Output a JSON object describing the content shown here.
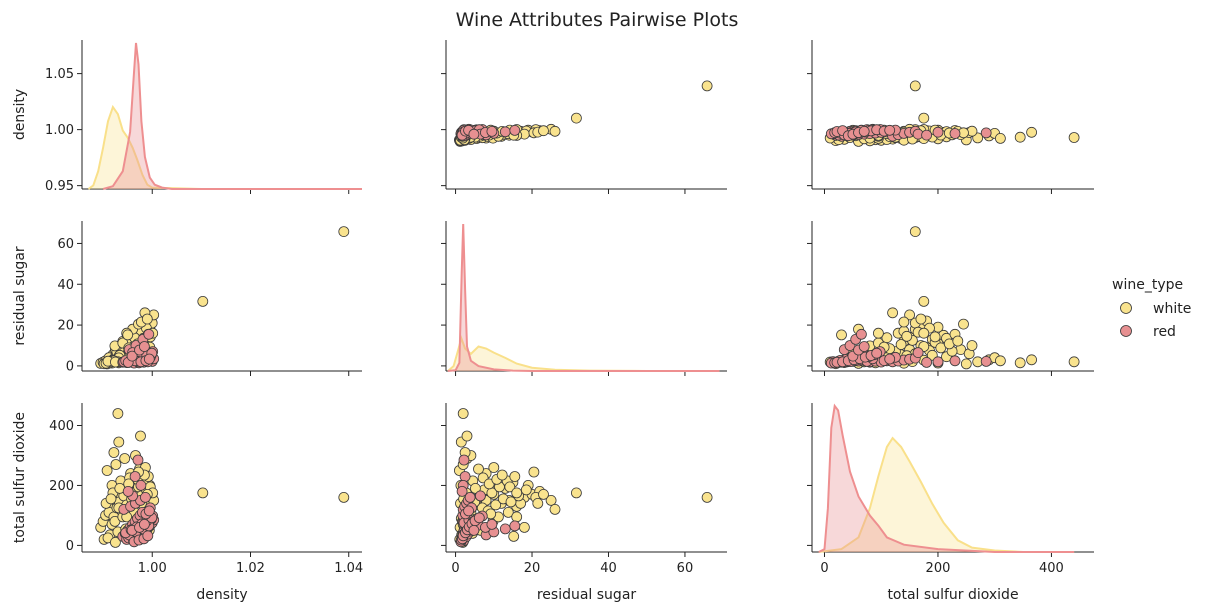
{
  "chart_data": {
    "type": "scatter",
    "title": "Wine Attributes Pairwise Plots",
    "variables": [
      "density",
      "residual sugar",
      "total sulfur dioxide"
    ],
    "axes": {
      "density": {
        "label": "density",
        "range": [
          0.9857,
          1.0427
        ],
        "ticks": [
          1.0,
          1.02,
          1.04
        ],
        "tick_labels": [
          "1.00",
          "1.02",
          "1.04"
        ],
        "row_range": [
          0.947,
          1.08
        ],
        "row_ticks": [
          0.95,
          1.0,
          1.05
        ],
        "row_tick_labels": [
          "0.95",
          "1.00",
          "1.05"
        ]
      },
      "residual sugar": {
        "label": "residual sugar",
        "range": [
          -2.5,
          71
        ],
        "ticks": [
          0,
          20,
          40,
          60
        ],
        "tick_labels": [
          "0",
          "20",
          "40",
          "60"
        ]
      },
      "total sulfur dioxide": {
        "label": "total sulfur dioxide",
        "range": [
          -22,
          475
        ],
        "ticks": [
          0,
          200,
          400
        ],
        "tick_labels": [
          "0",
          "200",
          "400"
        ]
      }
    },
    "legend": {
      "title": "wine_type",
      "entries": [
        "white",
        "red"
      ],
      "placement": "right"
    },
    "series": [
      {
        "name": "white",
        "color": "#f9e38e",
        "points": [
          [
            0.991,
            1.5,
            90
          ],
          [
            0.9915,
            3.0,
            120
          ],
          [
            0.992,
            5.5,
            135
          ],
          [
            0.9925,
            8.0,
            150
          ],
          [
            0.993,
            6.0,
            160
          ],
          [
            0.9935,
            10.0,
            170
          ],
          [
            0.994,
            12.0,
            140
          ],
          [
            0.9945,
            9.0,
            180
          ],
          [
            0.995,
            14.0,
            150
          ],
          [
            0.9955,
            11.0,
            200
          ],
          [
            0.996,
            16.0,
            130
          ],
          [
            0.9965,
            13.0,
            190
          ],
          [
            0.997,
            18.0,
            160
          ],
          [
            0.9975,
            15.0,
            210
          ],
          [
            0.998,
            20.0,
            170
          ],
          [
            0.9985,
            17.0,
            140
          ],
          [
            0.999,
            22.0,
            180
          ],
          [
            0.9995,
            19.0,
            200
          ],
          [
            1.0,
            21.0,
            160
          ],
          [
            1.0003,
            25.0,
            150
          ],
          [
            0.9895,
            1.2,
            60
          ],
          [
            0.99,
            1.8,
            80
          ],
          [
            0.9905,
            2.5,
            100
          ],
          [
            0.9912,
            4.0,
            110
          ],
          [
            0.9918,
            2.0,
            70
          ],
          [
            0.9922,
            3.5,
            95
          ],
          [
            0.9928,
            7.0,
            125
          ],
          [
            0.9933,
            5.0,
            145
          ],
          [
            0.9938,
            8.5,
            115
          ],
          [
            0.9942,
            6.5,
            165
          ],
          [
            0.9948,
            10.5,
            135
          ],
          [
            0.9952,
            7.5,
            185
          ],
          [
            0.9958,
            12.5,
            155
          ],
          [
            0.9962,
            9.5,
            175
          ],
          [
            0.9968,
            14.5,
            145
          ],
          [
            0.9972,
            11.5,
            195
          ],
          [
            0.9978,
            16.5,
            165
          ],
          [
            0.9982,
            13.5,
            215
          ],
          [
            0.9988,
            18.5,
            185
          ],
          [
            0.9992,
            15.5,
            230
          ],
          [
            0.9908,
            1.0,
            250
          ],
          [
            0.9926,
            2.0,
            270
          ],
          [
            0.9944,
            3.0,
            290
          ],
          [
            0.9966,
            4.0,
            300
          ],
          [
            0.9956,
            8.0,
            240
          ],
          [
            0.9974,
            6.0,
            255
          ],
          [
            0.9986,
            10.0,
            260
          ],
          [
            0.9918,
            1.4,
            200
          ],
          [
            0.9936,
            4.5,
            215
          ],
          [
            0.9954,
            7.2,
            225
          ],
          [
            0.9902,
            1.1,
            20
          ],
          [
            0.9914,
            1.6,
            35
          ],
          [
            0.993,
            2.2,
            45
          ],
          [
            0.9946,
            3.3,
            55
          ],
          [
            0.9962,
            4.4,
            40
          ],
          [
            0.9978,
            5.5,
            60
          ],
          [
            0.9994,
            6.6,
            50
          ],
          [
            0.9924,
            9.8,
            80
          ],
          [
            0.994,
            11.2,
            95
          ],
          [
            0.9964,
            13.8,
            110
          ],
          [
            0.992,
            2.8,
            175
          ],
          [
            0.9934,
            5.2,
            190
          ],
          [
            0.9952,
            8.8,
            205
          ],
          [
            0.997,
            10.8,
            220
          ],
          [
            0.9984,
            12.2,
            235
          ],
          [
            0.9996,
            14.2,
            195
          ],
          [
            1.0001,
            16.0,
            175
          ],
          [
            0.9906,
            1.3,
            140
          ],
          [
            0.9916,
            2.1,
            155
          ],
          [
            0.9932,
            3.9,
            125
          ],
          [
            0.9932,
            1.5,
            345
          ],
          [
            0.9922,
            2.5,
            310
          ],
          [
            0.9976,
            3.0,
            365
          ],
          [
            0.993,
            2.0,
            440
          ],
          [
            1.0103,
            31.6,
            175
          ],
          [
            1.039,
            65.8,
            160
          ],
          [
            0.9985,
            26.0,
            120
          ],
          [
            0.996,
            18.0,
            60
          ],
          [
            0.9948,
            16.0,
            95
          ],
          [
            0.9972,
            20.5,
            245
          ],
          [
            0.991,
            2.3,
            25
          ],
          [
            0.9925,
            1.9,
            10
          ],
          [
            0.995,
            15.2,
            30
          ],
          [
            0.9995,
            9.2,
            105
          ],
          [
            0.9978,
            21.5,
            140
          ],
          [
            0.999,
            23.0,
            170
          ]
        ]
      },
      {
        "name": "red",
        "color": "#e79091",
        "points": [
          [
            0.994,
            1.8,
            30
          ],
          [
            0.9945,
            2.0,
            40
          ],
          [
            0.995,
            2.2,
            50
          ],
          [
            0.9955,
            2.4,
            60
          ],
          [
            0.996,
            2.6,
            70
          ],
          [
            0.9965,
            2.0,
            80
          ],
          [
            0.997,
            2.3,
            90
          ],
          [
            0.9975,
            1.9,
            100
          ],
          [
            0.998,
            2.5,
            110
          ],
          [
            0.9985,
            2.1,
            45
          ],
          [
            0.999,
            2.8,
            55
          ],
          [
            0.9995,
            3.0,
            65
          ],
          [
            1.0,
            2.2,
            75
          ],
          [
            1.0003,
            3.5,
            85
          ],
          [
            0.9948,
            1.6,
            20
          ],
          [
            0.9952,
            1.7,
            25
          ],
          [
            0.9958,
            1.9,
            35
          ],
          [
            0.9962,
            2.1,
            15
          ],
          [
            0.9968,
            2.7,
            28
          ],
          [
            0.9972,
            3.2,
            38
          ],
          [
            0.9978,
            4.0,
            48
          ],
          [
            0.9982,
            5.0,
            58
          ],
          [
            0.9988,
            6.0,
            68
          ],
          [
            0.9992,
            4.5,
            78
          ],
          [
            0.9998,
            5.5,
            88
          ],
          [
            1.0001,
            7.0,
            98
          ],
          [
            0.9942,
            2.0,
            120
          ],
          [
            0.9956,
            2.4,
            130
          ],
          [
            0.9966,
            2.9,
            140
          ],
          [
            0.9976,
            3.3,
            150
          ],
          [
            0.9986,
            3.8,
            160
          ],
          [
            0.9996,
            4.2,
            125
          ],
          [
            0.9953,
            8.0,
            35
          ],
          [
            0.9967,
            10.0,
            45
          ],
          [
            0.9981,
            13.0,
            55
          ],
          [
            0.9993,
            15.5,
            65
          ],
          [
            0.9963,
            1.4,
            12
          ],
          [
            0.9973,
            1.5,
            18
          ],
          [
            0.9983,
            1.8,
            22
          ],
          [
            0.9991,
            2.0,
            32
          ],
          [
            0.9946,
            2.6,
            42
          ],
          [
            0.9957,
            3.1,
            52
          ],
          [
            0.9969,
            3.6,
            62
          ],
          [
            0.9979,
            4.3,
            72
          ],
          [
            0.9989,
            5.1,
            82
          ],
          [
            0.9999,
            6.2,
            92
          ],
          [
            0.996,
            6.5,
            165
          ],
          [
            0.9971,
            2.2,
            285
          ],
          [
            0.9965,
            2.5,
            230
          ],
          [
            0.9977,
            2.0,
            200
          ],
          [
            0.9951,
            1.7,
            180
          ],
          [
            0.9987,
            2.6,
            105
          ],
          [
            0.9994,
            3.4,
            115
          ],
          [
            0.9959,
            4.8,
            50
          ],
          [
            0.9974,
            7.8,
            60
          ],
          [
            0.9984,
            9.5,
            70
          ]
        ]
      }
    ],
    "density_curves": {
      "density": {
        "white": [
          [
            0.987,
            0.0
          ],
          [
            0.988,
            0.05
          ],
          [
            0.989,
            0.25
          ],
          [
            0.99,
            0.58
          ],
          [
            0.991,
            0.95
          ],
          [
            0.992,
            1.15
          ],
          [
            0.993,
            1.05
          ],
          [
            0.994,
            0.82
          ],
          [
            0.995,
            0.72
          ],
          [
            0.996,
            0.58
          ],
          [
            0.997,
            0.4
          ],
          [
            0.998,
            0.2
          ],
          [
            0.999,
            0.06
          ],
          [
            1.0,
            0.02
          ],
          [
            1.01,
            0.0
          ],
          [
            1.0427,
            0.0
          ]
        ],
        "red": [
          [
            0.99,
            0.0
          ],
          [
            0.992,
            0.04
          ],
          [
            0.994,
            0.25
          ],
          [
            0.9955,
            0.8
          ],
          [
            0.9962,
            1.55
          ],
          [
            0.9967,
            2.05
          ],
          [
            0.9972,
            1.75
          ],
          [
            0.9978,
            0.95
          ],
          [
            0.9985,
            0.45
          ],
          [
            0.9995,
            0.16
          ],
          [
            1.0005,
            0.06
          ],
          [
            1.002,
            0.02
          ],
          [
            1.004,
            0.0
          ],
          [
            1.0427,
            0.0
          ]
        ]
      },
      "residual sugar": {
        "white": [
          [
            -2.0,
            0.0
          ],
          [
            -0.5,
            0.12
          ],
          [
            0.8,
            0.55
          ],
          [
            1.5,
            0.8
          ],
          [
            2.5,
            0.55
          ],
          [
            4.0,
            0.42
          ],
          [
            6.0,
            0.6
          ],
          [
            8.0,
            0.55
          ],
          [
            10.0,
            0.45
          ],
          [
            13.0,
            0.32
          ],
          [
            16.0,
            0.18
          ],
          [
            20.0,
            0.08
          ],
          [
            26.0,
            0.03
          ],
          [
            35.0,
            0.01
          ],
          [
            50.0,
            0.0
          ],
          [
            69.0,
            0.0
          ]
        ],
        "red": [
          [
            -2.0,
            0.0
          ],
          [
            0.0,
            0.02
          ],
          [
            1.0,
            0.2
          ],
          [
            1.6,
            2.4
          ],
          [
            2.0,
            3.6
          ],
          [
            2.5,
            2.0
          ],
          [
            3.0,
            0.6
          ],
          [
            4.0,
            0.25
          ],
          [
            6.0,
            0.12
          ],
          [
            10.0,
            0.04
          ],
          [
            15.0,
            0.01
          ],
          [
            20.0,
            0.0
          ],
          [
            69.0,
            0.0
          ]
        ]
      },
      "total sulfur dioxide": {
        "white": [
          [
            -10,
            0.0
          ],
          [
            30,
            0.02
          ],
          [
            60,
            0.1
          ],
          [
            80,
            0.3
          ],
          [
            95,
            0.52
          ],
          [
            110,
            0.72
          ],
          [
            120,
            0.78
          ],
          [
            135,
            0.72
          ],
          [
            150,
            0.62
          ],
          [
            170,
            0.48
          ],
          [
            190,
            0.33
          ],
          [
            210,
            0.2
          ],
          [
            235,
            0.08
          ],
          [
            260,
            0.03
          ],
          [
            300,
            0.01
          ],
          [
            350,
            0.0
          ],
          [
            440,
            0.0
          ]
        ],
        "red": [
          [
            -10,
            0.0
          ],
          [
            0,
            0.02
          ],
          [
            6,
            0.3
          ],
          [
            12,
            0.85
          ],
          [
            18,
            1.0
          ],
          [
            24,
            0.97
          ],
          [
            32,
            0.8
          ],
          [
            45,
            0.55
          ],
          [
            60,
            0.38
          ],
          [
            80,
            0.25
          ],
          [
            95,
            0.18
          ],
          [
            110,
            0.1
          ],
          [
            140,
            0.05
          ],
          [
            200,
            0.02
          ],
          [
            300,
            0.0
          ],
          [
            440,
            0.0
          ]
        ]
      }
    }
  }
}
